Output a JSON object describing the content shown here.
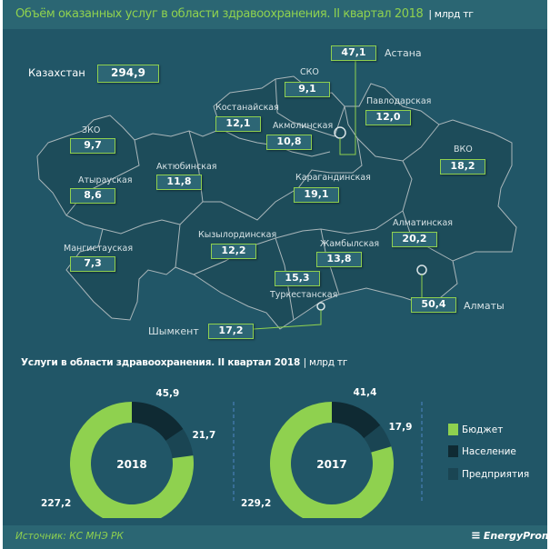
{
  "header": {
    "title": "Объём оказанных услуг в области здравоохранения. II квартал 2018",
    "unit": "| млрд тг"
  },
  "map": {
    "total": {
      "label": "Казахстан",
      "value": "294,9"
    },
    "regions": [
      {
        "name": "Астана",
        "value": "47,1"
      },
      {
        "name": "СКО",
        "value": "9,1"
      },
      {
        "name": "Костанайская",
        "value": "12,1"
      },
      {
        "name": "Акмолинская",
        "value": "10,8"
      },
      {
        "name": "Павлодарская",
        "value": "12,0"
      },
      {
        "name": "ЗКО",
        "value": "9,7"
      },
      {
        "name": "ВКО",
        "value": "18,2"
      },
      {
        "name": "Актюбинская",
        "value": "11,8"
      },
      {
        "name": "Атырауская",
        "value": "8,6"
      },
      {
        "name": "Карагандинская",
        "value": "19,1"
      },
      {
        "name": "Алматинская",
        "value": "20,2"
      },
      {
        "name": "Кызылординская",
        "value": "12,2"
      },
      {
        "name": "Жамбылская",
        "value": "13,8"
      },
      {
        "name": "Мангистауская",
        "value": "7,3"
      },
      {
        "name": "Туркестанская",
        "value": "15,3"
      },
      {
        "name": "Алматы",
        "value": "50,4"
      },
      {
        "name": "Шымкент",
        "value": "17,2"
      }
    ]
  },
  "chart_data": {
    "type": "pie",
    "title": "Услуги в области здравоохранения.  II квартал  2018",
    "unit": "| млрд тг",
    "legend": [
      "Бюджет",
      "Население",
      "Предприятия"
    ],
    "legend_placement": "right",
    "colors": {
      "Бюджет": "#8fd14f",
      "Население": "#0f2a33",
      "Предприятия": "#1a4553"
    },
    "charts": [
      {
        "center_label": "2018",
        "values": {
          "Бюджет": 227.2,
          "Население": 45.9,
          "Предприятия": 21.7
        },
        "labels": {
          "Бюджет": "227,2",
          "Население": "45,9",
          "Предприятия": "21,7"
        }
      },
      {
        "center_label": "2017",
        "values": {
          "Бюджет": 229.2,
          "Население": 41.4,
          "Предприятия": 17.9
        },
        "labels": {
          "Бюджет": "229,2",
          "Население": "41,4",
          "Предприятия": "17,9"
        }
      }
    ]
  },
  "footer": {
    "source": "Источник: КС МНЭ РК",
    "logo": "EnergyProm"
  }
}
